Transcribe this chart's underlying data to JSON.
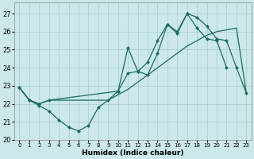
{
  "xlabel": "Humidex (Indice chaleur)",
  "xlim": [
    -0.5,
    23.5
  ],
  "ylim": [
    20.0,
    27.6
  ],
  "yticks": [
    20,
    21,
    22,
    23,
    24,
    25,
    26,
    27
  ],
  "xticks": [
    0,
    1,
    2,
    3,
    4,
    5,
    6,
    7,
    8,
    9,
    10,
    11,
    12,
    13,
    14,
    15,
    16,
    17,
    18,
    19,
    20,
    21,
    22,
    23
  ],
  "bg_color": "#cce8e8",
  "grid_color": "#aacccc",
  "line_color": "#1a6b5a",
  "curve1_x": [
    0,
    1,
    2,
    3,
    4,
    5,
    6,
    7,
    8,
    9,
    10,
    11,
    12,
    13,
    14,
    15,
    16,
    17,
    18,
    19,
    20,
    21
  ],
  "curve1_y": [
    22.9,
    22.2,
    21.9,
    21.6,
    21.1,
    20.7,
    20.5,
    20.8,
    21.8,
    22.2,
    22.7,
    25.1,
    23.8,
    24.3,
    25.5,
    26.4,
    26.0,
    27.0,
    26.2,
    25.6,
    25.5,
    24.0
  ],
  "curve2_x": [
    0,
    1,
    2,
    3,
    10,
    11,
    12,
    13,
    14,
    15,
    16,
    17,
    18,
    19,
    20,
    21,
    22,
    23
  ],
  "curve2_y": [
    22.9,
    22.2,
    22.0,
    22.2,
    22.7,
    23.7,
    23.8,
    23.6,
    24.8,
    26.4,
    25.9,
    27.0,
    26.8,
    26.3,
    25.6,
    25.5,
    24.0,
    22.6
  ],
  "curve3_x": [
    0,
    1,
    2,
    3,
    9,
    10,
    11,
    12,
    13,
    14,
    15,
    16,
    17,
    18,
    19,
    20,
    21,
    22,
    23
  ],
  "curve3_y": [
    22.9,
    22.2,
    22.0,
    22.2,
    22.2,
    22.5,
    22.8,
    23.2,
    23.6,
    24.0,
    24.4,
    24.8,
    25.2,
    25.5,
    25.8,
    26.0,
    26.1,
    26.2,
    22.6
  ],
  "lw": 0.9,
  "ms": 2.2
}
